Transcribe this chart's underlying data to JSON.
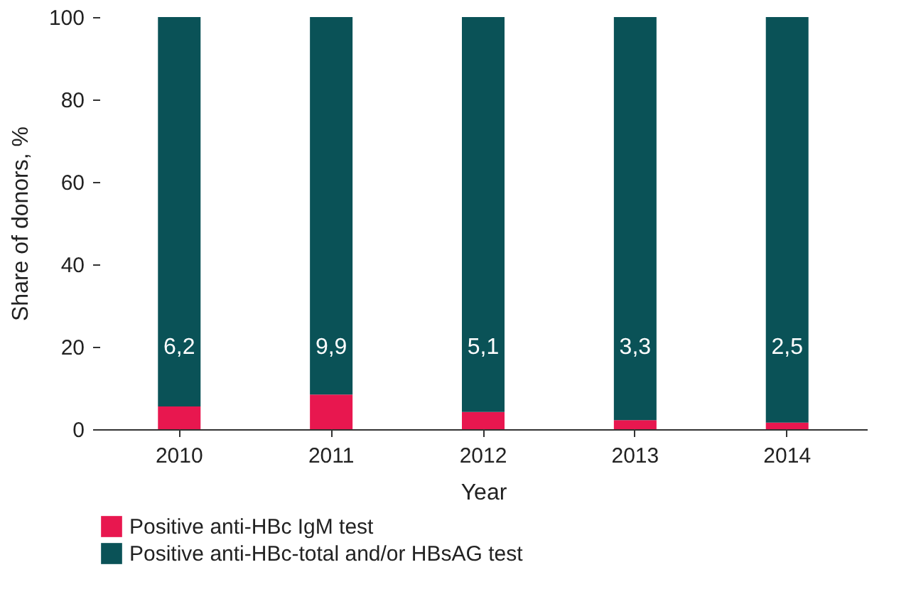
{
  "chart_data": {
    "type": "bar",
    "stacked": true,
    "xlabel": "Year",
    "ylabel": "Share of donors, %",
    "categories": [
      "2010",
      "2011",
      "2012",
      "2013",
      "2014"
    ],
    "series": [
      {
        "name": "Positive anti-HBc IgM test",
        "color": "#e8174f",
        "values": [
          5.5,
          8.4,
          4.2,
          2.2,
          1.6
        ]
      },
      {
        "name": "Positive anti-HBc-total and/or HBsAG test",
        "color": "#0a5257",
        "values": [
          94.5,
          91.6,
          95.8,
          97.8,
          98.4
        ]
      }
    ],
    "annotations": [
      "6,2",
      "9,9",
      "5,1",
      "3,3",
      "2,5"
    ],
    "ylim": [
      0,
      100
    ],
    "yticks": [
      0,
      20,
      40,
      60,
      80,
      100
    ],
    "grid": false,
    "legend": "bottom"
  }
}
